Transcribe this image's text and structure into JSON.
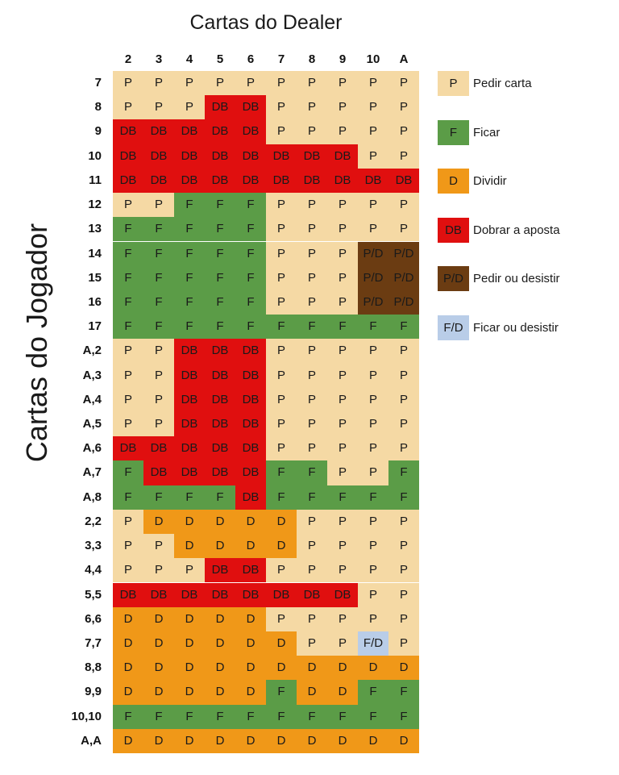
{
  "chart_data": {
    "type": "table",
    "title": "Cartas do Dealer",
    "ylabel": "Cartas do Jogador",
    "columns": [
      "2",
      "3",
      "4",
      "5",
      "6",
      "7",
      "8",
      "9",
      "10",
      "A"
    ],
    "rows": [
      {
        "label": "7",
        "values": [
          "P",
          "P",
          "P",
          "P",
          "P",
          "P",
          "P",
          "P",
          "P",
          "P"
        ]
      },
      {
        "label": "8",
        "values": [
          "P",
          "P",
          "P",
          "DB",
          "DB",
          "P",
          "P",
          "P",
          "P",
          "P"
        ]
      },
      {
        "label": "9",
        "values": [
          "DB",
          "DB",
          "DB",
          "DB",
          "DB",
          "P",
          "P",
          "P",
          "P",
          "P"
        ]
      },
      {
        "label": "10",
        "values": [
          "DB",
          "DB",
          "DB",
          "DB",
          "DB",
          "DB",
          "DB",
          "DB",
          "P",
          "P"
        ]
      },
      {
        "label": "11",
        "values": [
          "DB",
          "DB",
          "DB",
          "DB",
          "DB",
          "DB",
          "DB",
          "DB",
          "DB",
          "DB"
        ]
      },
      {
        "label": "12",
        "values": [
          "P",
          "P",
          "F",
          "F",
          "F",
          "P",
          "P",
          "P",
          "P",
          "P"
        ]
      },
      {
        "label": "13",
        "values": [
          "F",
          "F",
          "F",
          "F",
          "F",
          "P",
          "P",
          "P",
          "P",
          "P"
        ]
      },
      {
        "label": "14",
        "values": [
          "F",
          "F",
          "F",
          "F",
          "F",
          "P",
          "P",
          "P",
          "P/D",
          "P/D"
        ]
      },
      {
        "label": "15",
        "values": [
          "F",
          "F",
          "F",
          "F",
          "F",
          "P",
          "P",
          "P",
          "P/D",
          "P/D"
        ]
      },
      {
        "label": "16",
        "values": [
          "F",
          "F",
          "F",
          "F",
          "F",
          "P",
          "P",
          "P",
          "P/D",
          "P/D"
        ]
      },
      {
        "label": "17",
        "values": [
          "F",
          "F",
          "F",
          "F",
          "F",
          "F",
          "F",
          "F",
          "F",
          "F"
        ]
      },
      {
        "label": "A,2",
        "values": [
          "P",
          "P",
          "DB",
          "DB",
          "DB",
          "P",
          "P",
          "P",
          "P",
          "P"
        ]
      },
      {
        "label": "A,3",
        "values": [
          "P",
          "P",
          "DB",
          "DB",
          "DB",
          "P",
          "P",
          "P",
          "P",
          "P"
        ]
      },
      {
        "label": "A,4",
        "values": [
          "P",
          "P",
          "DB",
          "DB",
          "DB",
          "P",
          "P",
          "P",
          "P",
          "P"
        ]
      },
      {
        "label": "A,5",
        "values": [
          "P",
          "P",
          "DB",
          "DB",
          "DB",
          "P",
          "P",
          "P",
          "P",
          "P"
        ]
      },
      {
        "label": "A,6",
        "values": [
          "DB",
          "DB",
          "DB",
          "DB",
          "DB",
          "P",
          "P",
          "P",
          "P",
          "P"
        ]
      },
      {
        "label": "A,7",
        "values": [
          "F",
          "DB",
          "DB",
          "DB",
          "DB",
          "F",
          "F",
          "P",
          "P",
          "F"
        ]
      },
      {
        "label": "A,8",
        "values": [
          "F",
          "F",
          "F",
          "F",
          "DB",
          "F",
          "F",
          "F",
          "F",
          "F"
        ]
      },
      {
        "label": "2,2",
        "values": [
          "P",
          "D",
          "D",
          "D",
          "D",
          "D",
          "P",
          "P",
          "P",
          "P"
        ]
      },
      {
        "label": "3,3",
        "values": [
          "P",
          "P",
          "D",
          "D",
          "D",
          "D",
          "P",
          "P",
          "P",
          "P"
        ]
      },
      {
        "label": "4,4",
        "values": [
          "P",
          "P",
          "P",
          "DB",
          "DB",
          "P",
          "P",
          "P",
          "P",
          "P"
        ]
      },
      {
        "label": "5,5",
        "values": [
          "DB",
          "DB",
          "DB",
          "DB",
          "DB",
          "DB",
          "DB",
          "DB",
          "P",
          "P"
        ]
      },
      {
        "label": "6,6",
        "values": [
          "D",
          "D",
          "D",
          "D",
          "D",
          "P",
          "P",
          "P",
          "P",
          "P"
        ]
      },
      {
        "label": "7,7",
        "values": [
          "D",
          "D",
          "D",
          "D",
          "D",
          "D",
          "P",
          "P",
          "F/D",
          "P"
        ]
      },
      {
        "label": "8,8",
        "values": [
          "D",
          "D",
          "D",
          "D",
          "D",
          "D",
          "D",
          "D",
          "D",
          "D"
        ]
      },
      {
        "label": "9,9",
        "values": [
          "D",
          "D",
          "D",
          "D",
          "D",
          "F",
          "D",
          "D",
          "F",
          "F"
        ]
      },
      {
        "label": "10,10",
        "values": [
          "F",
          "F",
          "F",
          "F",
          "F",
          "F",
          "F",
          "F",
          "F",
          "F"
        ]
      },
      {
        "label": "A,A",
        "values": [
          "D",
          "D",
          "D",
          "D",
          "D",
          "D",
          "D",
          "D",
          "D",
          "D"
        ]
      }
    ],
    "legend": [
      {
        "code": "P",
        "label": "Pedir carta",
        "color": "#f5d9a4"
      },
      {
        "code": "F",
        "label": "Ficar",
        "color": "#5b9c47"
      },
      {
        "code": "D",
        "label": "Dividir",
        "color": "#f09818"
      },
      {
        "code": "DB",
        "label": "Dobrar a aposta",
        "color": "#e00f0f"
      },
      {
        "code": "P/D",
        "label": "Pedir ou desistir",
        "color": "#6b3c12"
      },
      {
        "code": "F/D",
        "label": "Ficar ou desistir",
        "color": "#b9cde8"
      }
    ]
  }
}
